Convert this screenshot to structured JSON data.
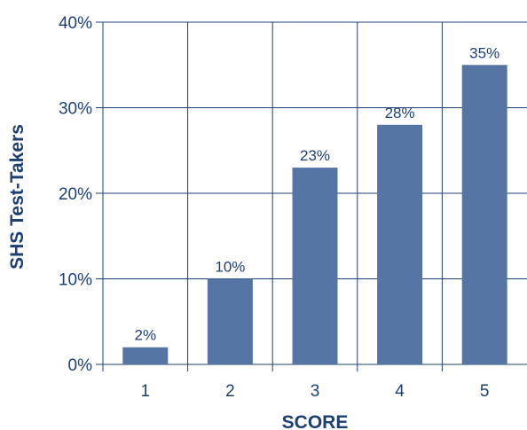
{
  "chart_data": {
    "type": "bar",
    "title": "",
    "xlabel": "SCORE",
    "ylabel": "SHS Test-Takers",
    "categories": [
      "1",
      "2",
      "3",
      "4",
      "5"
    ],
    "values": [
      2,
      10,
      23,
      28,
      35
    ],
    "value_labels": [
      "2%",
      "10%",
      "23%",
      "28%",
      "35%"
    ],
    "ylim": [
      0,
      40
    ],
    "yticks": [
      0,
      10,
      20,
      30,
      40
    ],
    "ytick_labels": [
      "0%",
      "10%",
      "20%",
      "30%",
      "40%"
    ],
    "grid": true,
    "colors": {
      "bar": "#5575a4",
      "grid": "#1c3f74",
      "text": "#1c3f74"
    }
  }
}
